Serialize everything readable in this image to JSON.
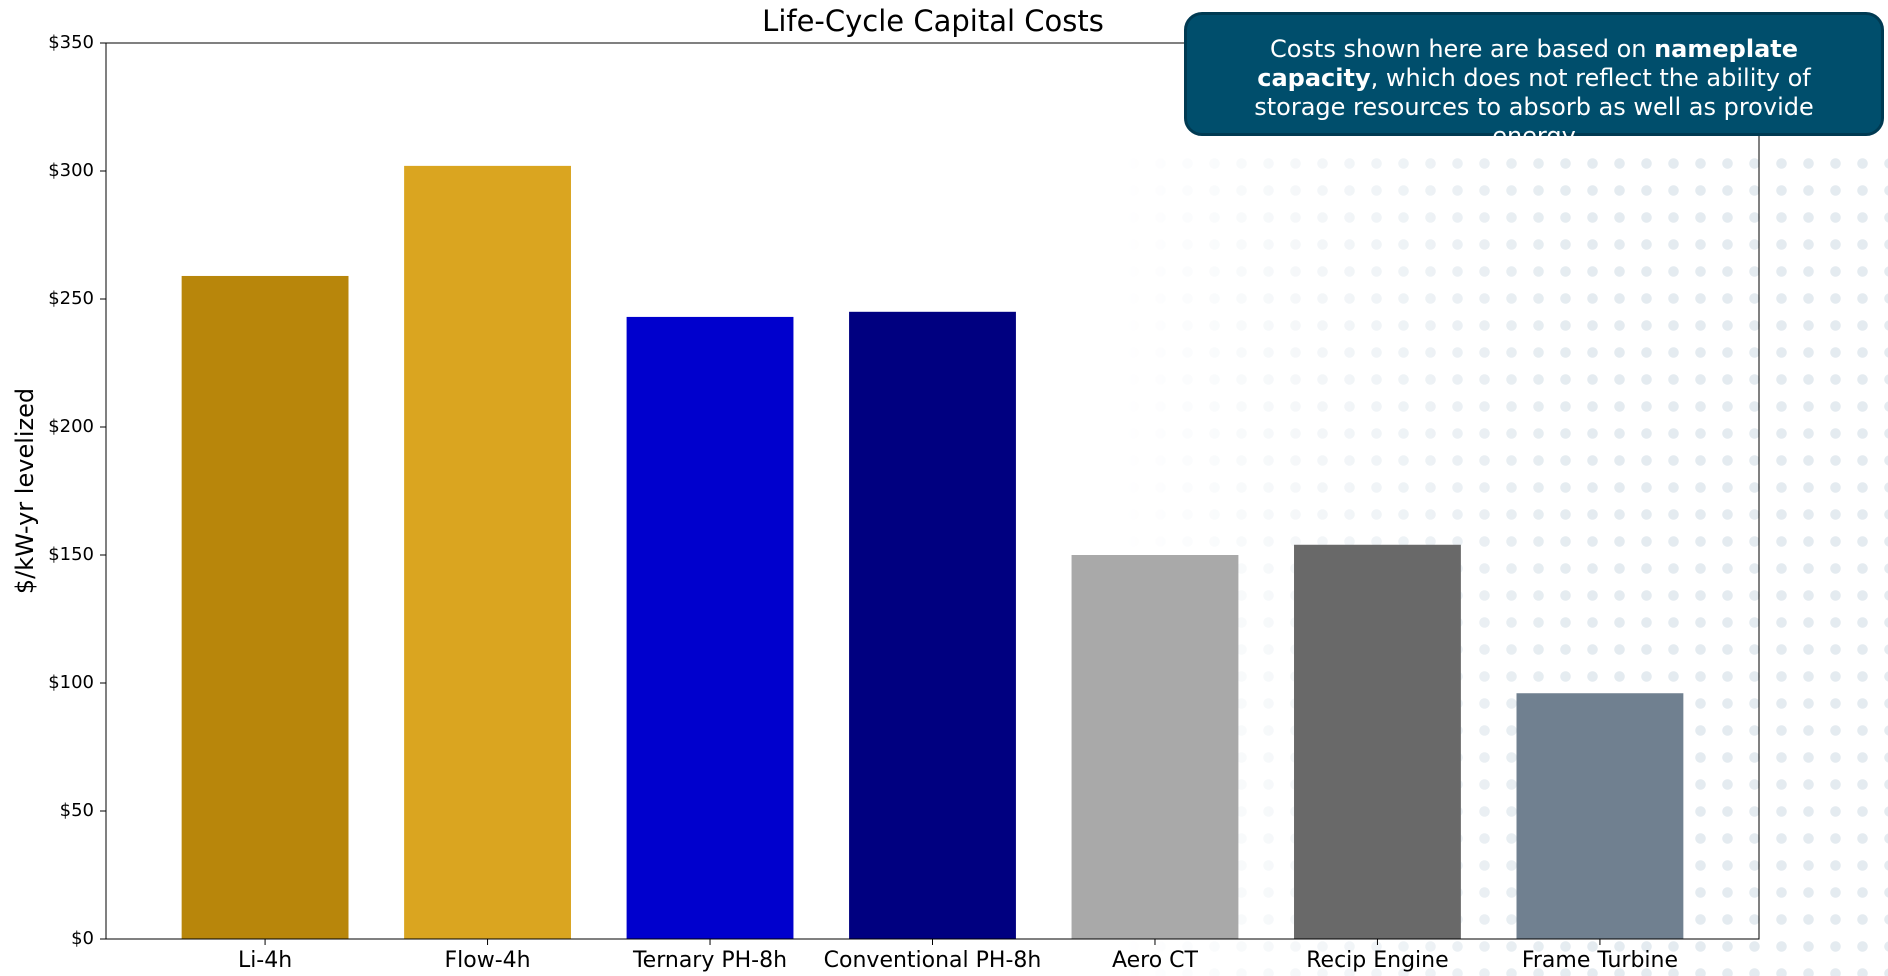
{
  "chart_data": {
    "type": "bar",
    "title": "Life-Cycle Capital Costs",
    "ylabel": "$/kW-yr levelized",
    "categories": [
      "Li-4h",
      "Flow-4h",
      "Ternary PH-8h",
      "Conventional PH-8h",
      "Aero CT",
      "Recip Engine",
      "Frame Turbine"
    ],
    "values": [
      259,
      302,
      243,
      245,
      150,
      154,
      96
    ],
    "colors": [
      "#b8860b",
      "#daa520",
      "#0000cd",
      "#000080",
      "#a9a9a9",
      "#696969",
      "#708090"
    ],
    "ylim": [
      0,
      350
    ],
    "yticks": [
      {
        "value": 0,
        "label": "$0"
      },
      {
        "value": 50,
        "label": "$50"
      },
      {
        "value": 100,
        "label": "$100"
      },
      {
        "value": 150,
        "label": "$150"
      },
      {
        "value": 200,
        "label": "$200"
      },
      {
        "value": 250,
        "label": "$250"
      },
      {
        "value": 300,
        "label": "$300"
      },
      {
        "value": 350,
        "label": "$350"
      }
    ],
    "grid": false,
    "annotation": [
      "Costs shown here are based on ",
      "nameplate capacity",
      ", which does not reflect the ability of storage resources to absorb as well as provide energy"
    ]
  }
}
